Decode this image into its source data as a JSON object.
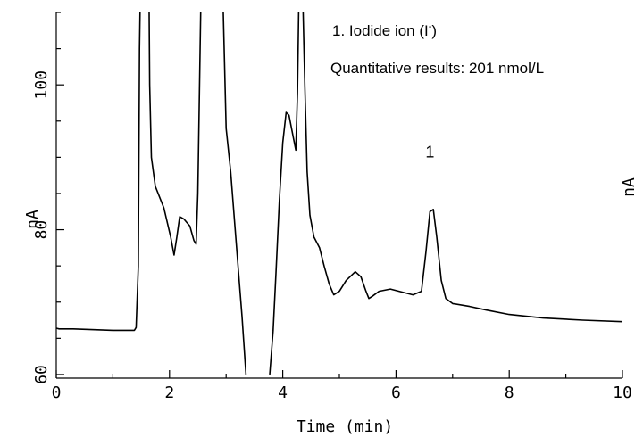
{
  "chart_data": {
    "type": "line",
    "xlabel": "Time (min)",
    "ylabel": "nA",
    "right_ylabel": "nA",
    "xlim": [
      0,
      10
    ],
    "ylim": [
      59.5,
      110
    ],
    "x_ticks": [
      0,
      2,
      4,
      6,
      8,
      10
    ],
    "x_tick_labels": [
      "0",
      "2",
      "4",
      "6",
      "8",
      "10"
    ],
    "y_ticks": [
      60,
      80,
      100
    ],
    "y_tick_labels": [
      "60",
      "80",
      "100"
    ],
    "grid": false,
    "series": [
      {
        "segments": [
          [
            [
              0,
              66.4
            ],
            [
              0.05,
              66.3
            ],
            [
              0.3,
              66.3
            ],
            [
              1.0,
              66.1
            ],
            [
              1.38,
              66.1
            ],
            [
              1.41,
              66.5
            ],
            [
              1.45,
              75
            ],
            [
              1.47,
              105
            ],
            [
              1.48,
              112
            ]
          ],
          [
            [
              1.64,
              112
            ],
            [
              1.65,
              100
            ],
            [
              1.68,
              90
            ],
            [
              1.75,
              86
            ],
            [
              1.9,
              83
            ],
            [
              2.02,
              79
            ],
            [
              2.08,
              76.5
            ],
            [
              2.13,
              79
            ],
            [
              2.18,
              81.8
            ],
            [
              2.25,
              81.5
            ],
            [
              2.36,
              80.5
            ],
            [
              2.43,
              78.5
            ],
            [
              2.47,
              78
            ],
            [
              2.5,
              85
            ],
            [
              2.55,
              112
            ]
          ],
          [
            [
              2.95,
              112
            ],
            [
              3.0,
              94
            ],
            [
              3.08,
              88
            ],
            [
              3.18,
              78
            ],
            [
              3.28,
              68
            ],
            [
              3.35,
              60
            ]
          ],
          [
            [
              3.77,
              60
            ],
            [
              3.83,
              66
            ],
            [
              3.88,
              74
            ],
            [
              3.94,
              84
            ],
            [
              4.0,
              92
            ],
            [
              4.06,
              96.2
            ],
            [
              4.11,
              95.8
            ],
            [
              4.18,
              93
            ],
            [
              4.23,
              91
            ],
            [
              4.26,
              99
            ],
            [
              4.28,
              112
            ]
          ],
          [
            [
              4.36,
              112
            ],
            [
              4.39,
              100
            ],
            [
              4.43,
              88
            ],
            [
              4.48,
              82
            ],
            [
              4.55,
              79
            ],
            [
              4.65,
              77.5
            ],
            [
              4.73,
              75
            ],
            [
              4.82,
              72.5
            ],
            [
              4.9,
              71
            ],
            [
              5.0,
              71.5
            ],
            [
              5.12,
              73
            ],
            [
              5.28,
              74.2
            ],
            [
              5.38,
              73.5
            ],
            [
              5.47,
              71.5
            ],
            [
              5.52,
              70.5
            ],
            [
              5.58,
              70.8
            ],
            [
              5.7,
              71.5
            ],
            [
              5.9,
              71.8
            ],
            [
              6.1,
              71.4
            ],
            [
              6.3,
              71
            ],
            [
              6.45,
              71.5
            ],
            [
              6.53,
              77
            ],
            [
              6.6,
              82.5
            ],
            [
              6.66,
              82.8
            ],
            [
              6.72,
              79
            ],
            [
              6.8,
              73
            ],
            [
              6.88,
              70.5
            ],
            [
              7.0,
              69.8
            ],
            [
              7.3,
              69.4
            ],
            [
              7.6,
              68.9
            ],
            [
              8.0,
              68.3
            ],
            [
              8.6,
              67.8
            ],
            [
              9.3,
              67.5
            ],
            [
              10.0,
              67.3
            ]
          ]
        ]
      }
    ],
    "annotations": [
      {
        "text": "1",
        "x": 6.6,
        "y": 90
      }
    ]
  },
  "legend": {
    "line1_prefix": "1. Iodide ion (I",
    "line1_sup": "-",
    "line1_suffix": ")",
    "line2": "Quantitative results: 201 nmol/L"
  }
}
